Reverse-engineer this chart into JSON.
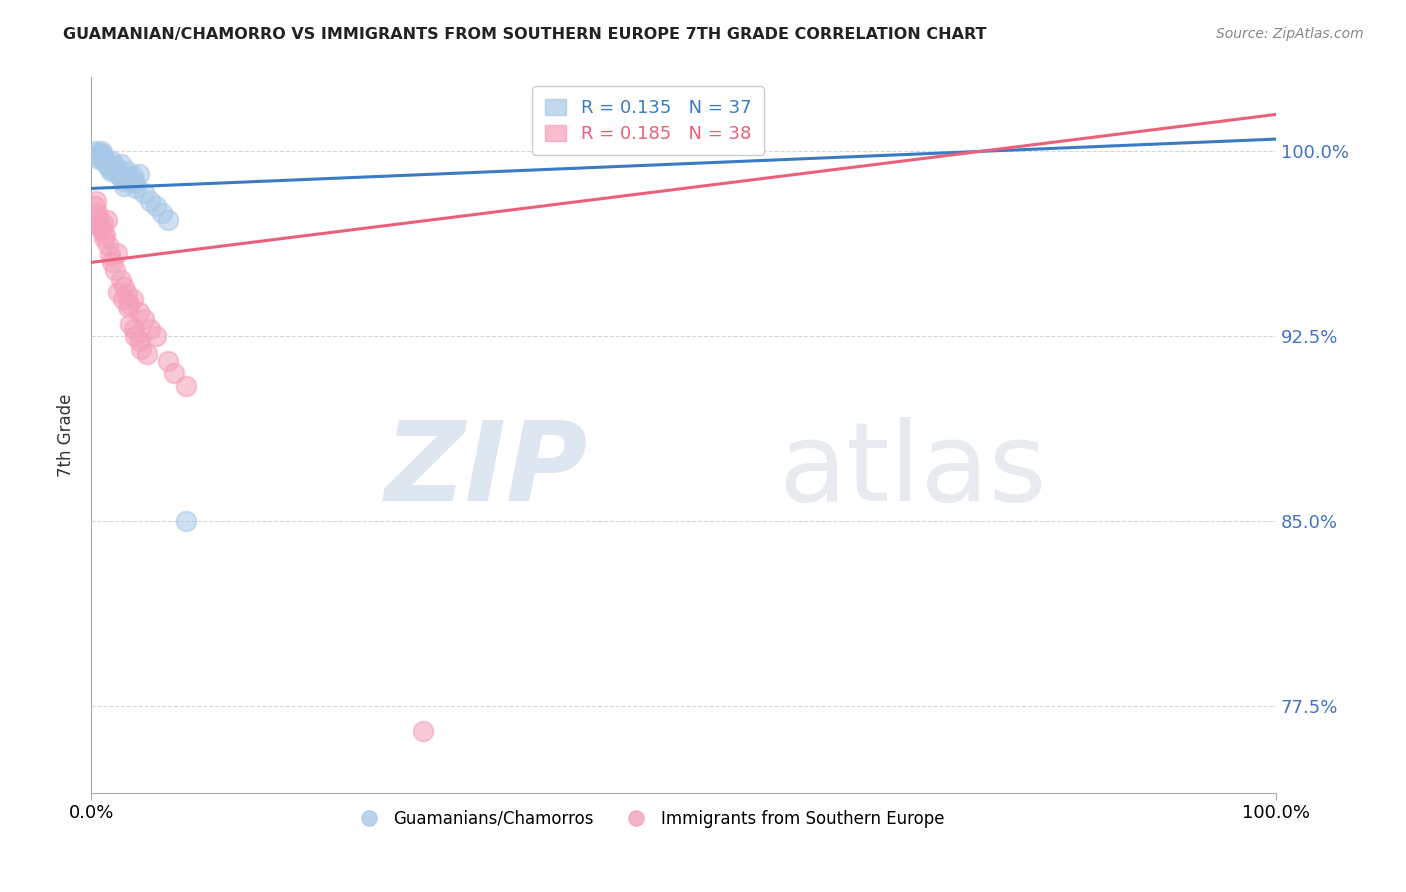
{
  "title": "GUAMANIAN/CHAMORRO VS IMMIGRANTS FROM SOUTHERN EUROPE 7TH GRADE CORRELATION CHART",
  "source": "Source: ZipAtlas.com",
  "ylabel": "7th Grade",
  "xlim": [
    0.0,
    100.0
  ],
  "ylim": [
    74.0,
    103.0
  ],
  "yticks": [
    77.5,
    85.0,
    92.5,
    100.0
  ],
  "ytick_labels": [
    "77.5%",
    "85.0%",
    "92.5%",
    "100.0%"
  ],
  "xticks": [
    0.0,
    100.0
  ],
  "xtick_labels": [
    "0.0%",
    "100.0%"
  ],
  "legend_R_blue": "R = 0.135",
  "legend_N_blue": "N = 37",
  "legend_R_pink": "R = 0.185",
  "legend_N_pink": "N = 38",
  "blue_color": "#a8c8e8",
  "pink_color": "#f4a0b8",
  "blue_line_color": "#3a7cc4",
  "pink_line_color": "#e8607a",
  "blue_x": [
    0.5,
    0.8,
    1.0,
    1.2,
    1.5,
    1.8,
    2.0,
    2.2,
    2.5,
    3.0,
    3.5,
    4.0,
    0.6,
    0.9,
    1.1,
    1.3,
    1.6,
    1.9,
    2.1,
    2.3,
    2.7,
    3.2,
    3.7,
    0.4,
    0.7,
    1.4,
    1.7,
    2.4,
    2.8,
    3.3,
    3.8,
    4.5,
    5.0,
    5.5,
    6.0,
    6.5,
    8.0
  ],
  "blue_y": [
    99.8,
    100.0,
    99.9,
    99.7,
    99.5,
    99.6,
    99.4,
    99.3,
    99.5,
    99.2,
    99.0,
    99.1,
    99.9,
    99.8,
    99.6,
    99.5,
    99.3,
    99.4,
    99.2,
    99.1,
    98.8,
    98.9,
    98.7,
    100.0,
    99.7,
    99.4,
    99.2,
    99.0,
    98.6,
    98.8,
    98.5,
    98.3,
    98.0,
    97.8,
    97.5,
    97.2,
    85.0
  ],
  "pink_x": [
    0.3,
    0.5,
    0.7,
    0.9,
    1.1,
    1.3,
    0.4,
    0.6,
    0.8,
    1.0,
    1.2,
    1.4,
    1.6,
    1.8,
    2.0,
    2.2,
    2.5,
    2.8,
    3.0,
    3.2,
    3.5,
    4.0,
    4.5,
    5.0,
    3.3,
    3.7,
    4.2,
    2.3,
    2.7,
    3.1,
    3.6,
    4.1,
    4.7,
    5.5,
    6.5,
    7.0,
    8.0,
    28.0
  ],
  "pink_y": [
    97.8,
    97.5,
    97.0,
    96.8,
    96.5,
    97.2,
    98.0,
    97.3,
    96.9,
    97.1,
    96.6,
    96.2,
    95.8,
    95.5,
    95.2,
    95.9,
    94.8,
    94.5,
    94.2,
    93.8,
    94.0,
    93.5,
    93.2,
    92.8,
    93.0,
    92.5,
    92.0,
    94.3,
    94.0,
    93.7,
    92.8,
    92.3,
    91.8,
    92.5,
    91.5,
    91.0,
    90.5,
    76.5
  ],
  "blue_trendline_x": [
    0.0,
    100.0
  ],
  "blue_trendline_y": [
    98.5,
    100.5
  ],
  "pink_trendline_x": [
    0.0,
    100.0
  ],
  "pink_trendline_y": [
    95.5,
    101.5
  ]
}
